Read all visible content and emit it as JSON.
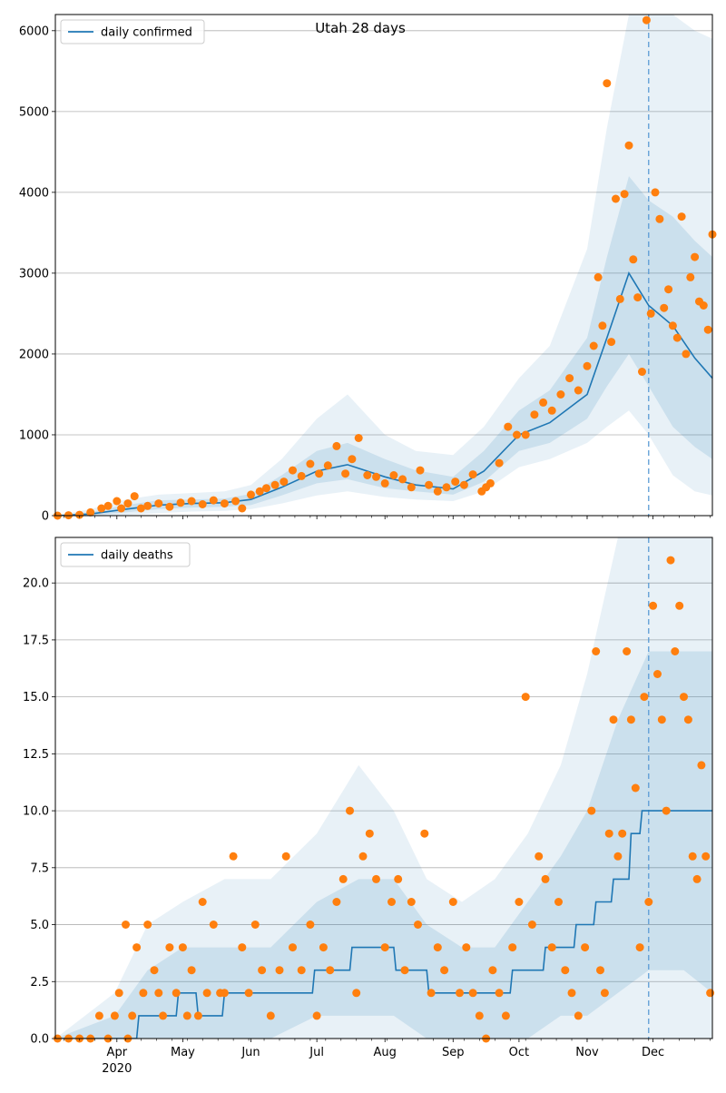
{
  "figure_title": "Utah 28 days",
  "colors": {
    "line": "#1f77b4",
    "points": "#ff7f0e",
    "band": "#1f77b4",
    "grid": "#b0b0b0",
    "vline": "#5b9bd5"
  },
  "chart_data": [
    {
      "type": "line",
      "title": "Utah 28 days",
      "xlabel": "",
      "ylabel": "",
      "x_start": "2020-03-04",
      "x_end": "2020-12-28",
      "xlim": [
        "2020-03-04",
        "2020-12-28"
      ],
      "ylim": [
        0,
        6200
      ],
      "yticks": [
        0,
        1000,
        2000,
        3000,
        4000,
        5000,
        6000
      ],
      "ytick_labels": [
        "0",
        "1000",
        "2000",
        "3000",
        "4000",
        "5000",
        "6000"
      ],
      "xticks": [
        "2020-04-01",
        "2020-05-01",
        "2020-06-01",
        "2020-07-01",
        "2020-08-01",
        "2020-09-01",
        "2020-10-01",
        "2020-11-01",
        "2020-12-01"
      ],
      "xtick_labels": [],
      "grid": "horizontal",
      "legend": "top-left",
      "legend_label": "daily confirmed",
      "forecast_start": "2020-11-29",
      "trend": {
        "x": [
          "2020-03-04",
          "2020-03-20",
          "2020-04-05",
          "2020-04-20",
          "2020-05-05",
          "2020-05-20",
          "2020-06-01",
          "2020-06-15",
          "2020-07-01",
          "2020-07-15",
          "2020-08-01",
          "2020-08-15",
          "2020-09-01",
          "2020-09-15",
          "2020-10-01",
          "2020-10-15",
          "2020-11-01",
          "2020-11-10",
          "2020-11-20",
          "2020-11-29",
          "2020-12-10",
          "2020-12-20",
          "2020-12-28"
        ],
        "y": [
          0,
          20,
          80,
          130,
          150,
          160,
          200,
          350,
          550,
          630,
          480,
          380,
          330,
          550,
          1000,
          1150,
          1500,
          2200,
          3000,
          2600,
          2350,
          1950,
          1700
        ]
      },
      "bands": [
        {
          "x": [
            "2020-03-04",
            "2020-03-20",
            "2020-04-05",
            "2020-04-20",
            "2020-05-05",
            "2020-05-20",
            "2020-06-01",
            "2020-06-15",
            "2020-07-01",
            "2020-07-15",
            "2020-08-01",
            "2020-08-15",
            "2020-09-01",
            "2020-09-15",
            "2020-10-01",
            "2020-10-15",
            "2020-11-01",
            "2020-11-10",
            "2020-11-20",
            "2020-11-29",
            "2020-12-10",
            "2020-12-20",
            "2020-12-28"
          ],
          "lower": [
            0,
            0,
            10,
            30,
            50,
            60,
            80,
            150,
            250,
            300,
            230,
            200,
            180,
            300,
            600,
            700,
            900,
            1100,
            1300,
            1000,
            500,
            300,
            250
          ],
          "upper": [
            0,
            80,
            200,
            260,
            280,
            300,
            380,
            700,
            1200,
            1500,
            1000,
            800,
            750,
            1100,
            1700,
            2100,
            3300,
            4800,
            6500,
            6500,
            6200,
            6000,
            5900
          ]
        },
        {
          "x": [
            "2020-03-04",
            "2020-03-20",
            "2020-04-05",
            "2020-04-20",
            "2020-05-05",
            "2020-05-20",
            "2020-06-01",
            "2020-06-15",
            "2020-07-01",
            "2020-07-15",
            "2020-08-01",
            "2020-08-15",
            "2020-09-01",
            "2020-09-15",
            "2020-10-01",
            "2020-10-15",
            "2020-11-01",
            "2020-11-10",
            "2020-11-20",
            "2020-11-29",
            "2020-12-10",
            "2020-12-20",
            "2020-12-28"
          ],
          "lower": [
            0,
            5,
            40,
            80,
            100,
            110,
            130,
            250,
            400,
            450,
            340,
            300,
            260,
            420,
            800,
            900,
            1200,
            1600,
            2000,
            1600,
            1100,
            850,
            700
          ],
          "upper": [
            0,
            45,
            130,
            190,
            200,
            210,
            270,
            500,
            800,
            900,
            700,
            560,
            480,
            800,
            1300,
            1550,
            2200,
            3200,
            4200,
            3900,
            3700,
            3400,
            3200
          ]
        }
      ],
      "points": {
        "x": [
          "2020-03-05",
          "2020-03-10",
          "2020-03-15",
          "2020-03-20",
          "2020-03-25",
          "2020-03-28",
          "2020-04-01",
          "2020-04-03",
          "2020-04-06",
          "2020-04-09",
          "2020-04-12",
          "2020-04-15",
          "2020-04-20",
          "2020-04-25",
          "2020-04-30",
          "2020-05-05",
          "2020-05-10",
          "2020-05-15",
          "2020-05-20",
          "2020-05-25",
          "2020-05-28",
          "2020-06-01",
          "2020-06-05",
          "2020-06-08",
          "2020-06-12",
          "2020-06-16",
          "2020-06-20",
          "2020-06-24",
          "2020-06-28",
          "2020-07-02",
          "2020-07-06",
          "2020-07-10",
          "2020-07-14",
          "2020-07-17",
          "2020-07-20",
          "2020-07-24",
          "2020-07-28",
          "2020-08-01",
          "2020-08-05",
          "2020-08-09",
          "2020-08-13",
          "2020-08-17",
          "2020-08-21",
          "2020-08-25",
          "2020-08-29",
          "2020-09-02",
          "2020-09-06",
          "2020-09-10",
          "2020-09-14",
          "2020-09-16",
          "2020-09-18",
          "2020-09-22",
          "2020-09-26",
          "2020-09-30",
          "2020-10-04",
          "2020-10-08",
          "2020-10-12",
          "2020-10-16",
          "2020-10-20",
          "2020-10-24",
          "2020-10-28",
          "2020-11-01",
          "2020-11-04",
          "2020-11-06",
          "2020-11-08",
          "2020-11-10",
          "2020-11-12",
          "2020-11-14",
          "2020-11-16",
          "2020-11-18",
          "2020-11-20",
          "2020-11-22",
          "2020-11-24",
          "2020-11-26",
          "2020-11-28",
          "2020-11-30",
          "2020-12-02",
          "2020-12-04",
          "2020-12-06",
          "2020-12-08",
          "2020-12-10",
          "2020-12-12",
          "2020-12-14",
          "2020-12-16",
          "2020-12-18",
          "2020-12-20",
          "2020-12-22",
          "2020-12-24",
          "2020-12-26",
          "2020-12-28"
        ],
        "y": [
          0,
          5,
          10,
          40,
          90,
          120,
          180,
          90,
          150,
          240,
          90,
          120,
          150,
          110,
          160,
          180,
          140,
          190,
          150,
          180,
          90,
          260,
          300,
          340,
          380,
          420,
          560,
          490,
          640,
          520,
          620,
          860,
          520,
          700,
          960,
          500,
          480,
          400,
          500,
          450,
          350,
          560,
          380,
          300,
          350,
          420,
          380,
          510,
          300,
          350,
          400,
          650,
          1100,
          1000,
          1000,
          1250,
          1400,
          1300,
          1500,
          1700,
          1550,
          1850,
          2100,
          2950,
          2350,
          5350,
          2150,
          3920,
          2680,
          3980,
          4580,
          3170,
          2700,
          1780,
          6130,
          2500,
          4000,
          3670,
          2570,
          2800,
          2350,
          2200,
          3700,
          2000,
          2950,
          3200,
          2650,
          2600,
          2300,
          3480
        ]
      }
    },
    {
      "type": "line",
      "title": "",
      "xlabel": "",
      "ylabel": "",
      "x_start": "2020-03-04",
      "x_end": "2020-12-28",
      "xlim": [
        "2020-03-04",
        "2020-12-28"
      ],
      "ylim": [
        0,
        22
      ],
      "yticks": [
        0,
        2.5,
        5,
        7.5,
        10,
        12.5,
        15,
        17.5,
        20
      ],
      "ytick_labels": [
        "0.0",
        "2.5",
        "5.0",
        "7.5",
        "10.0",
        "12.5",
        "15.0",
        "17.5",
        "20.0"
      ],
      "xticks": [
        "2020-04-01",
        "2020-05-01",
        "2020-06-01",
        "2020-07-01",
        "2020-08-01",
        "2020-09-01",
        "2020-10-01",
        "2020-11-01",
        "2020-12-01"
      ],
      "xtick_labels": [
        "Apr",
        "May",
        "Jun",
        "Jul",
        "Aug",
        "Sep",
        "Oct",
        "Nov",
        "Dec"
      ],
      "year_label": "2020",
      "grid": "horizontal",
      "legend": "top-left",
      "legend_label": "daily deaths",
      "forecast_start": "2020-11-29",
      "trend": {
        "x": [
          "2020-03-04",
          "2020-03-31",
          "2020-04-01",
          "2020-04-10",
          "2020-04-11",
          "2020-04-28",
          "2020-04-29",
          "2020-05-07",
          "2020-05-08",
          "2020-05-19",
          "2020-05-20",
          "2020-06-29",
          "2020-06-30",
          "2020-07-16",
          "2020-07-17",
          "2020-08-05",
          "2020-08-06",
          "2020-08-20",
          "2020-08-21",
          "2020-09-18",
          "2020-09-19",
          "2020-09-27",
          "2020-09-28",
          "2020-10-12",
          "2020-10-13",
          "2020-10-26",
          "2020-10-27",
          "2020-11-04",
          "2020-11-05",
          "2020-11-12",
          "2020-11-13",
          "2020-11-20",
          "2020-11-21",
          "2020-11-25",
          "2020-11-26",
          "2020-12-28"
        ],
        "y": [
          0,
          0,
          0,
          0,
          1,
          1,
          2,
          2,
          1,
          1,
          2,
          2,
          3,
          3,
          4,
          4,
          3,
          3,
          2,
          2,
          2,
          2,
          3,
          3,
          4,
          4,
          5,
          5,
          6,
          6,
          7,
          7,
          9,
          9,
          10,
          10
        ]
      },
      "bands": [
        {
          "x": [
            "2020-03-04",
            "2020-03-31",
            "2020-04-15",
            "2020-05-01",
            "2020-05-20",
            "2020-06-10",
            "2020-07-01",
            "2020-07-20",
            "2020-08-05",
            "2020-08-20",
            "2020-09-05",
            "2020-09-20",
            "2020-10-05",
            "2020-10-20",
            "2020-11-01",
            "2020-11-15",
            "2020-11-29",
            "2020-12-15",
            "2020-12-28"
          ],
          "lower": [
            0,
            0,
            0,
            0,
            0,
            0,
            0,
            0,
            0,
            0,
            0,
            0,
            0,
            0,
            0,
            0,
            0,
            0,
            0
          ],
          "upper": [
            0,
            2,
            5,
            6,
            7,
            7,
            9,
            12,
            10,
            7,
            6,
            7,
            9,
            12,
            16,
            22,
            22,
            22,
            22
          ]
        },
        {
          "x": [
            "2020-03-04",
            "2020-03-31",
            "2020-04-15",
            "2020-05-01",
            "2020-05-20",
            "2020-06-10",
            "2020-07-01",
            "2020-07-20",
            "2020-08-05",
            "2020-08-20",
            "2020-09-05",
            "2020-09-20",
            "2020-10-05",
            "2020-10-20",
            "2020-11-01",
            "2020-11-15",
            "2020-11-29",
            "2020-12-15",
            "2020-12-28"
          ],
          "lower": [
            0,
            0,
            0,
            0,
            0,
            0,
            1,
            1,
            1,
            0,
            0,
            0,
            0,
            1,
            1,
            2,
            3,
            3,
            2
          ],
          "upper": [
            0,
            1,
            3,
            4,
            4,
            4,
            6,
            7,
            7,
            5,
            4,
            4,
            6,
            8,
            10,
            14,
            17,
            17,
            17
          ]
        }
      ],
      "points": {
        "x": [
          "2020-03-05",
          "2020-03-10",
          "2020-03-15",
          "2020-03-20",
          "2020-03-24",
          "2020-03-28",
          "2020-03-31",
          "2020-04-02",
          "2020-04-05",
          "2020-04-06",
          "2020-04-08",
          "2020-04-10",
          "2020-04-13",
          "2020-04-15",
          "2020-04-18",
          "2020-04-20",
          "2020-04-22",
          "2020-04-25",
          "2020-04-28",
          "2020-05-01",
          "2020-05-03",
          "2020-05-05",
          "2020-05-08",
          "2020-05-10",
          "2020-05-12",
          "2020-05-15",
          "2020-05-18",
          "2020-05-20",
          "2020-05-24",
          "2020-05-28",
          "2020-05-31",
          "2020-06-03",
          "2020-06-06",
          "2020-06-10",
          "2020-06-14",
          "2020-06-17",
          "2020-06-20",
          "2020-06-24",
          "2020-06-28",
          "2020-07-01",
          "2020-07-04",
          "2020-07-07",
          "2020-07-10",
          "2020-07-13",
          "2020-07-16",
          "2020-07-19",
          "2020-07-22",
          "2020-07-25",
          "2020-07-28",
          "2020-08-01",
          "2020-08-04",
          "2020-08-07",
          "2020-08-10",
          "2020-08-13",
          "2020-08-16",
          "2020-08-19",
          "2020-08-22",
          "2020-08-25",
          "2020-08-28",
          "2020-09-01",
          "2020-09-04",
          "2020-09-07",
          "2020-09-10",
          "2020-09-13",
          "2020-09-16",
          "2020-09-19",
          "2020-09-22",
          "2020-09-25",
          "2020-09-28",
          "2020-10-01",
          "2020-10-04",
          "2020-10-07",
          "2020-10-10",
          "2020-10-13",
          "2020-10-16",
          "2020-10-19",
          "2020-10-22",
          "2020-10-25",
          "2020-10-28",
          "2020-10-31",
          "2020-11-03",
          "2020-11-05",
          "2020-11-07",
          "2020-11-09",
          "2020-11-11",
          "2020-11-13",
          "2020-11-15",
          "2020-11-17",
          "2020-11-19",
          "2020-11-21",
          "2020-11-23",
          "2020-11-25",
          "2020-11-27",
          "2020-11-29",
          "2020-12-01",
          "2020-12-03",
          "2020-12-05",
          "2020-12-07",
          "2020-12-09",
          "2020-12-11",
          "2020-12-13",
          "2020-12-15",
          "2020-12-17",
          "2020-12-19",
          "2020-12-21",
          "2020-12-23",
          "2020-12-25",
          "2020-12-27"
        ],
        "y": [
          0,
          0,
          0,
          0,
          1,
          0,
          1,
          2,
          5,
          0,
          1,
          4,
          2,
          5,
          3,
          2,
          1,
          4,
          2,
          4,
          1,
          3,
          1,
          6,
          2,
          5,
          2,
          2,
          8,
          4,
          2,
          5,
          3,
          1,
          3,
          8,
          4,
          3,
          5,
          1,
          4,
          3,
          6,
          7,
          10,
          2,
          8,
          9,
          7,
          4,
          6,
          7,
          3,
          6,
          5,
          9,
          2,
          4,
          3,
          6,
          2,
          4,
          2,
          1,
          0,
          3,
          2,
          1,
          4,
          6,
          15,
          5,
          8,
          7,
          4,
          6,
          3,
          2,
          1,
          4,
          10,
          17,
          3,
          2,
          9,
          14,
          8,
          9,
          17,
          14,
          11,
          4,
          15,
          6,
          19,
          16,
          14,
          10,
          21,
          17,
          19,
          15,
          14,
          8,
          7,
          12,
          8,
          2
        ]
      }
    }
  ]
}
